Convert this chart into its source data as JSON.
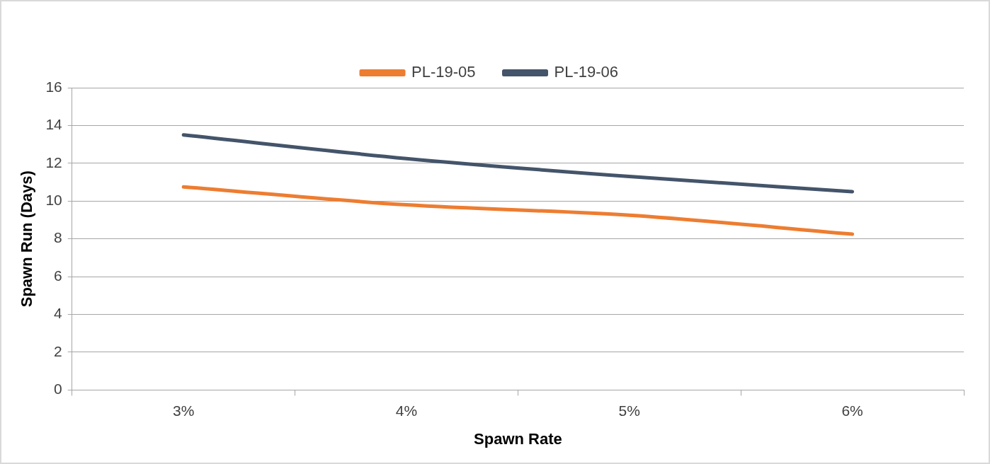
{
  "chart_data": {
    "type": "line",
    "xlabel": "Spawn Rate",
    "ylabel": "Spawn Run (Days)",
    "categories": [
      "3%",
      "4%",
      "5%",
      "6%"
    ],
    "series": [
      {
        "name": "PL-19-05",
        "color": "#ed7d31",
        "values": [
          10.75,
          9.8,
          9.25,
          8.25
        ]
      },
      {
        "name": "PL-19-06",
        "color": "#44546a",
        "values": [
          13.5,
          12.25,
          11.3,
          10.5
        ]
      }
    ],
    "ylim": [
      0,
      16
    ],
    "yticks": [
      0,
      2,
      4,
      6,
      8,
      10,
      12,
      14,
      16
    ],
    "grid": "y",
    "legend": "top",
    "marker": "none",
    "line_style": "solid"
  }
}
